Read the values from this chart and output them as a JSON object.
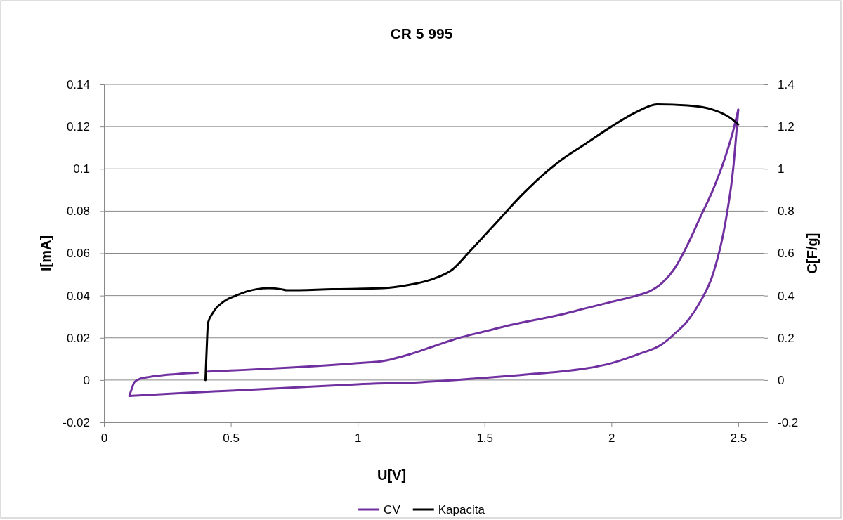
{
  "chart_data": {
    "type": "line",
    "title": "CR 5 995",
    "xlabel": "U[V]",
    "ylabel": "I[mA]",
    "y2label": "C[F/g]",
    "xlim": [
      0,
      2.6
    ],
    "xticks": [
      0,
      0.5,
      1,
      1.5,
      2,
      2.5
    ],
    "ylim": [
      -0.02,
      0.14
    ],
    "yticks": [
      -0.02,
      0,
      0.02,
      0.04,
      0.06,
      0.08,
      0.1,
      0.12,
      0.14
    ],
    "y2lim": [
      -0.2,
      1.4
    ],
    "y2ticks": [
      -0.2,
      0,
      0.2,
      0.4,
      0.6,
      0.8,
      1,
      1.2,
      1.4
    ],
    "grid": "y",
    "legend": "bottom",
    "marker": "none",
    "line_style": "solid",
    "series": [
      {
        "name": "CV",
        "color": "#7030a0",
        "x": [
          0.41,
          0.5,
          0.75,
          1.0,
          1.1,
          1.2,
          1.3,
          1.4,
          1.5,
          1.6,
          1.8,
          1.9,
          2.0,
          2.1,
          2.15,
          2.2,
          2.25,
          2.3,
          2.35,
          2.4,
          2.45,
          2.48,
          2.5
        ],
        "values": [
          0.004,
          0.0045,
          0.006,
          0.008,
          0.009,
          0.012,
          0.016,
          0.02,
          0.023,
          0.026,
          0.031,
          0.034,
          0.037,
          0.04,
          0.042,
          0.046,
          0.053,
          0.064,
          0.077,
          0.09,
          0.106,
          0.118,
          0.128
        ]
      },
      {
        "color": "#7030a0",
        "x": [
          0.1,
          0.3,
          0.5,
          0.75,
          1.0,
          1.25,
          1.5,
          1.7,
          1.8,
          1.9,
          2.0,
          2.1,
          2.2,
          2.25,
          2.3,
          2.35,
          2.4,
          2.45,
          2.48,
          2.5
        ],
        "values": [
          -0.0075,
          -0.0062,
          -0.005,
          -0.0035,
          -0.002,
          -0.001,
          0.001,
          0.003,
          0.004,
          0.0055,
          0.008,
          0.012,
          0.017,
          0.022,
          0.028,
          0.037,
          0.05,
          0.075,
          0.1,
          0.128
        ]
      },
      {
        "color": "#7030a0",
        "x": [
          0.1,
          0.11,
          0.12,
          0.14,
          0.18,
          0.25,
          0.37
        ],
        "values": [
          -0.0075,
          -0.004,
          -0.001,
          0.0005,
          0.0015,
          0.0025,
          0.0035
        ]
      },
      {
        "name": "Kapacita",
        "color": "#000000",
        "axis": "y2",
        "x": [
          0.4,
          0.405,
          0.41,
          0.43,
          0.47,
          0.52,
          0.6,
          0.65,
          0.7,
          0.72,
          0.9,
          1.1,
          1.2,
          1.3,
          1.37,
          1.45,
          1.55,
          1.65,
          1.8,
          1.9,
          2.0,
          2.1,
          2.18,
          2.3,
          2.4,
          2.47,
          2.5
        ],
        "values": [
          0,
          0.15,
          0.27,
          0.32,
          0.37,
          0.4,
          0.43,
          0.435,
          0.43,
          0.425,
          0.43,
          0.435,
          0.45,
          0.48,
          0.52,
          0.62,
          0.75,
          0.88,
          1.04,
          1.12,
          1.2,
          1.27,
          1.305,
          1.3,
          1.28,
          1.24,
          1.21
        ]
      }
    ]
  }
}
